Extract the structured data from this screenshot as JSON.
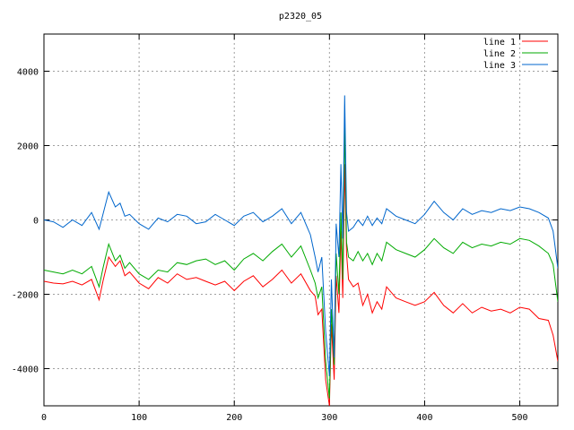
{
  "chart_data": {
    "type": "line",
    "title": "p2320_05",
    "xlabel": "",
    "ylabel": "",
    "xlim": [
      0,
      540
    ],
    "ylim": [
      -5000,
      5000
    ],
    "xticks": [
      0,
      100,
      200,
      300,
      400,
      500
    ],
    "yticks": [
      -4000,
      -2000,
      0,
      2000,
      4000
    ],
    "grid": true,
    "legend_position": "top-right",
    "series": [
      {
        "name": "line 1",
        "color": "#ff0000",
        "points": [
          [
            0,
            -1650
          ],
          [
            10,
            -1700
          ],
          [
            20,
            -1720
          ],
          [
            30,
            -1650
          ],
          [
            40,
            -1750
          ],
          [
            50,
            -1600
          ],
          [
            58,
            -2150
          ],
          [
            62,
            -1650
          ],
          [
            68,
            -1000
          ],
          [
            75,
            -1250
          ],
          [
            80,
            -1100
          ],
          [
            85,
            -1500
          ],
          [
            90,
            -1400
          ],
          [
            100,
            -1700
          ],
          [
            110,
            -1850
          ],
          [
            120,
            -1550
          ],
          [
            130,
            -1700
          ],
          [
            140,
            -1450
          ],
          [
            150,
            -1600
          ],
          [
            160,
            -1550
          ],
          [
            170,
            -1650
          ],
          [
            180,
            -1750
          ],
          [
            190,
            -1650
          ],
          [
            200,
            -1900
          ],
          [
            210,
            -1650
          ],
          [
            220,
            -1500
          ],
          [
            230,
            -1800
          ],
          [
            240,
            -1600
          ],
          [
            250,
            -1350
          ],
          [
            260,
            -1700
          ],
          [
            270,
            -1450
          ],
          [
            280,
            -1900
          ],
          [
            285,
            -2050
          ],
          [
            288,
            -2550
          ],
          [
            292,
            -2400
          ],
          [
            296,
            -4300
          ],
          [
            300,
            -5000
          ],
          [
            302,
            -2800
          ],
          [
            305,
            -4300
          ],
          [
            307,
            -1500
          ],
          [
            310,
            -2500
          ],
          [
            312,
            -300
          ],
          [
            314,
            -2100
          ],
          [
            316,
            1500
          ],
          [
            318,
            -900
          ],
          [
            320,
            -1600
          ],
          [
            325,
            -1800
          ],
          [
            330,
            -1700
          ],
          [
            335,
            -2300
          ],
          [
            340,
            -2000
          ],
          [
            345,
            -2500
          ],
          [
            350,
            -2200
          ],
          [
            355,
            -2400
          ],
          [
            360,
            -1800
          ],
          [
            370,
            -2100
          ],
          [
            380,
            -2200
          ],
          [
            390,
            -2300
          ],
          [
            400,
            -2200
          ],
          [
            410,
            -1950
          ],
          [
            420,
            -2300
          ],
          [
            430,
            -2500
          ],
          [
            440,
            -2250
          ],
          [
            450,
            -2500
          ],
          [
            460,
            -2350
          ],
          [
            470,
            -2450
          ],
          [
            480,
            -2400
          ],
          [
            490,
            -2500
          ],
          [
            500,
            -2350
          ],
          [
            510,
            -2400
          ],
          [
            520,
            -2650
          ],
          [
            530,
            -2700
          ],
          [
            535,
            -3100
          ],
          [
            540,
            -3800
          ]
        ]
      },
      {
        "name": "line 2",
        "color": "#00aa00",
        "points": [
          [
            0,
            -1350
          ],
          [
            10,
            -1400
          ],
          [
            20,
            -1450
          ],
          [
            30,
            -1350
          ],
          [
            40,
            -1450
          ],
          [
            50,
            -1250
          ],
          [
            58,
            -1800
          ],
          [
            62,
            -1300
          ],
          [
            68,
            -650
          ],
          [
            75,
            -1100
          ],
          [
            80,
            -950
          ],
          [
            85,
            -1300
          ],
          [
            90,
            -1150
          ],
          [
            100,
            -1450
          ],
          [
            110,
            -1600
          ],
          [
            120,
            -1350
          ],
          [
            130,
            -1400
          ],
          [
            140,
            -1150
          ],
          [
            150,
            -1200
          ],
          [
            160,
            -1100
          ],
          [
            170,
            -1050
          ],
          [
            180,
            -1200
          ],
          [
            190,
            -1100
          ],
          [
            200,
            -1350
          ],
          [
            210,
            -1050
          ],
          [
            220,
            -900
          ],
          [
            230,
            -1100
          ],
          [
            240,
            -850
          ],
          [
            250,
            -650
          ],
          [
            260,
            -1000
          ],
          [
            270,
            -700
          ],
          [
            280,
            -1350
          ],
          [
            285,
            -1700
          ],
          [
            288,
            -2100
          ],
          [
            292,
            -1800
          ],
          [
            296,
            -3800
          ],
          [
            300,
            -4800
          ],
          [
            302,
            -2400
          ],
          [
            305,
            -3900
          ],
          [
            307,
            -900
          ],
          [
            310,
            -2000
          ],
          [
            312,
            200
          ],
          [
            314,
            -1600
          ],
          [
            316,
            2650
          ],
          [
            318,
            -600
          ],
          [
            320,
            -1000
          ],
          [
            325,
            -1100
          ],
          [
            330,
            -850
          ],
          [
            335,
            -1100
          ],
          [
            340,
            -900
          ],
          [
            345,
            -1200
          ],
          [
            350,
            -900
          ],
          [
            355,
            -1100
          ],
          [
            360,
            -600
          ],
          [
            370,
            -800
          ],
          [
            380,
            -900
          ],
          [
            390,
            -1000
          ],
          [
            400,
            -800
          ],
          [
            410,
            -500
          ],
          [
            420,
            -750
          ],
          [
            430,
            -900
          ],
          [
            440,
            -600
          ],
          [
            450,
            -750
          ],
          [
            460,
            -650
          ],
          [
            470,
            -700
          ],
          [
            480,
            -600
          ],
          [
            490,
            -650
          ],
          [
            500,
            -500
          ],
          [
            510,
            -550
          ],
          [
            520,
            -700
          ],
          [
            530,
            -900
          ],
          [
            535,
            -1200
          ],
          [
            540,
            -2200
          ]
        ]
      },
      {
        "name": "line 3",
        "color": "#0066cc",
        "points": [
          [
            0,
            0
          ],
          [
            10,
            -50
          ],
          [
            20,
            -200
          ],
          [
            30,
            0
          ],
          [
            40,
            -150
          ],
          [
            50,
            200
          ],
          [
            58,
            -250
          ],
          [
            62,
            150
          ],
          [
            68,
            750
          ],
          [
            75,
            350
          ],
          [
            80,
            450
          ],
          [
            85,
            100
          ],
          [
            90,
            150
          ],
          [
            100,
            -100
          ],
          [
            110,
            -250
          ],
          [
            120,
            50
          ],
          [
            130,
            -50
          ],
          [
            140,
            150
          ],
          [
            150,
            100
          ],
          [
            160,
            -100
          ],
          [
            170,
            -50
          ],
          [
            180,
            150
          ],
          [
            190,
            0
          ],
          [
            200,
            -150
          ],
          [
            210,
            100
          ],
          [
            220,
            200
          ],
          [
            230,
            -50
          ],
          [
            240,
            100
          ],
          [
            250,
            300
          ],
          [
            260,
            -100
          ],
          [
            270,
            200
          ],
          [
            280,
            -400
          ],
          [
            285,
            -1000
          ],
          [
            288,
            -1400
          ],
          [
            292,
            -1000
          ],
          [
            296,
            -3000
          ],
          [
            300,
            -4200
          ],
          [
            302,
            -1600
          ],
          [
            305,
            -3700
          ],
          [
            307,
            -100
          ],
          [
            310,
            -1000
          ],
          [
            312,
            1500
          ],
          [
            314,
            -500
          ],
          [
            316,
            3350
          ],
          [
            318,
            200
          ],
          [
            320,
            -300
          ],
          [
            325,
            -200
          ],
          [
            330,
            0
          ],
          [
            335,
            -150
          ],
          [
            340,
            100
          ],
          [
            345,
            -150
          ],
          [
            350,
            50
          ],
          [
            355,
            -100
          ],
          [
            360,
            300
          ],
          [
            370,
            100
          ],
          [
            380,
            0
          ],
          [
            390,
            -100
          ],
          [
            400,
            150
          ],
          [
            410,
            500
          ],
          [
            420,
            200
          ],
          [
            430,
            0
          ],
          [
            440,
            300
          ],
          [
            450,
            150
          ],
          [
            460,
            250
          ],
          [
            470,
            200
          ],
          [
            480,
            300
          ],
          [
            490,
            250
          ],
          [
            500,
            350
          ],
          [
            510,
            300
          ],
          [
            520,
            200
          ],
          [
            530,
            50
          ],
          [
            535,
            -300
          ],
          [
            540,
            -1300
          ]
        ]
      }
    ]
  }
}
